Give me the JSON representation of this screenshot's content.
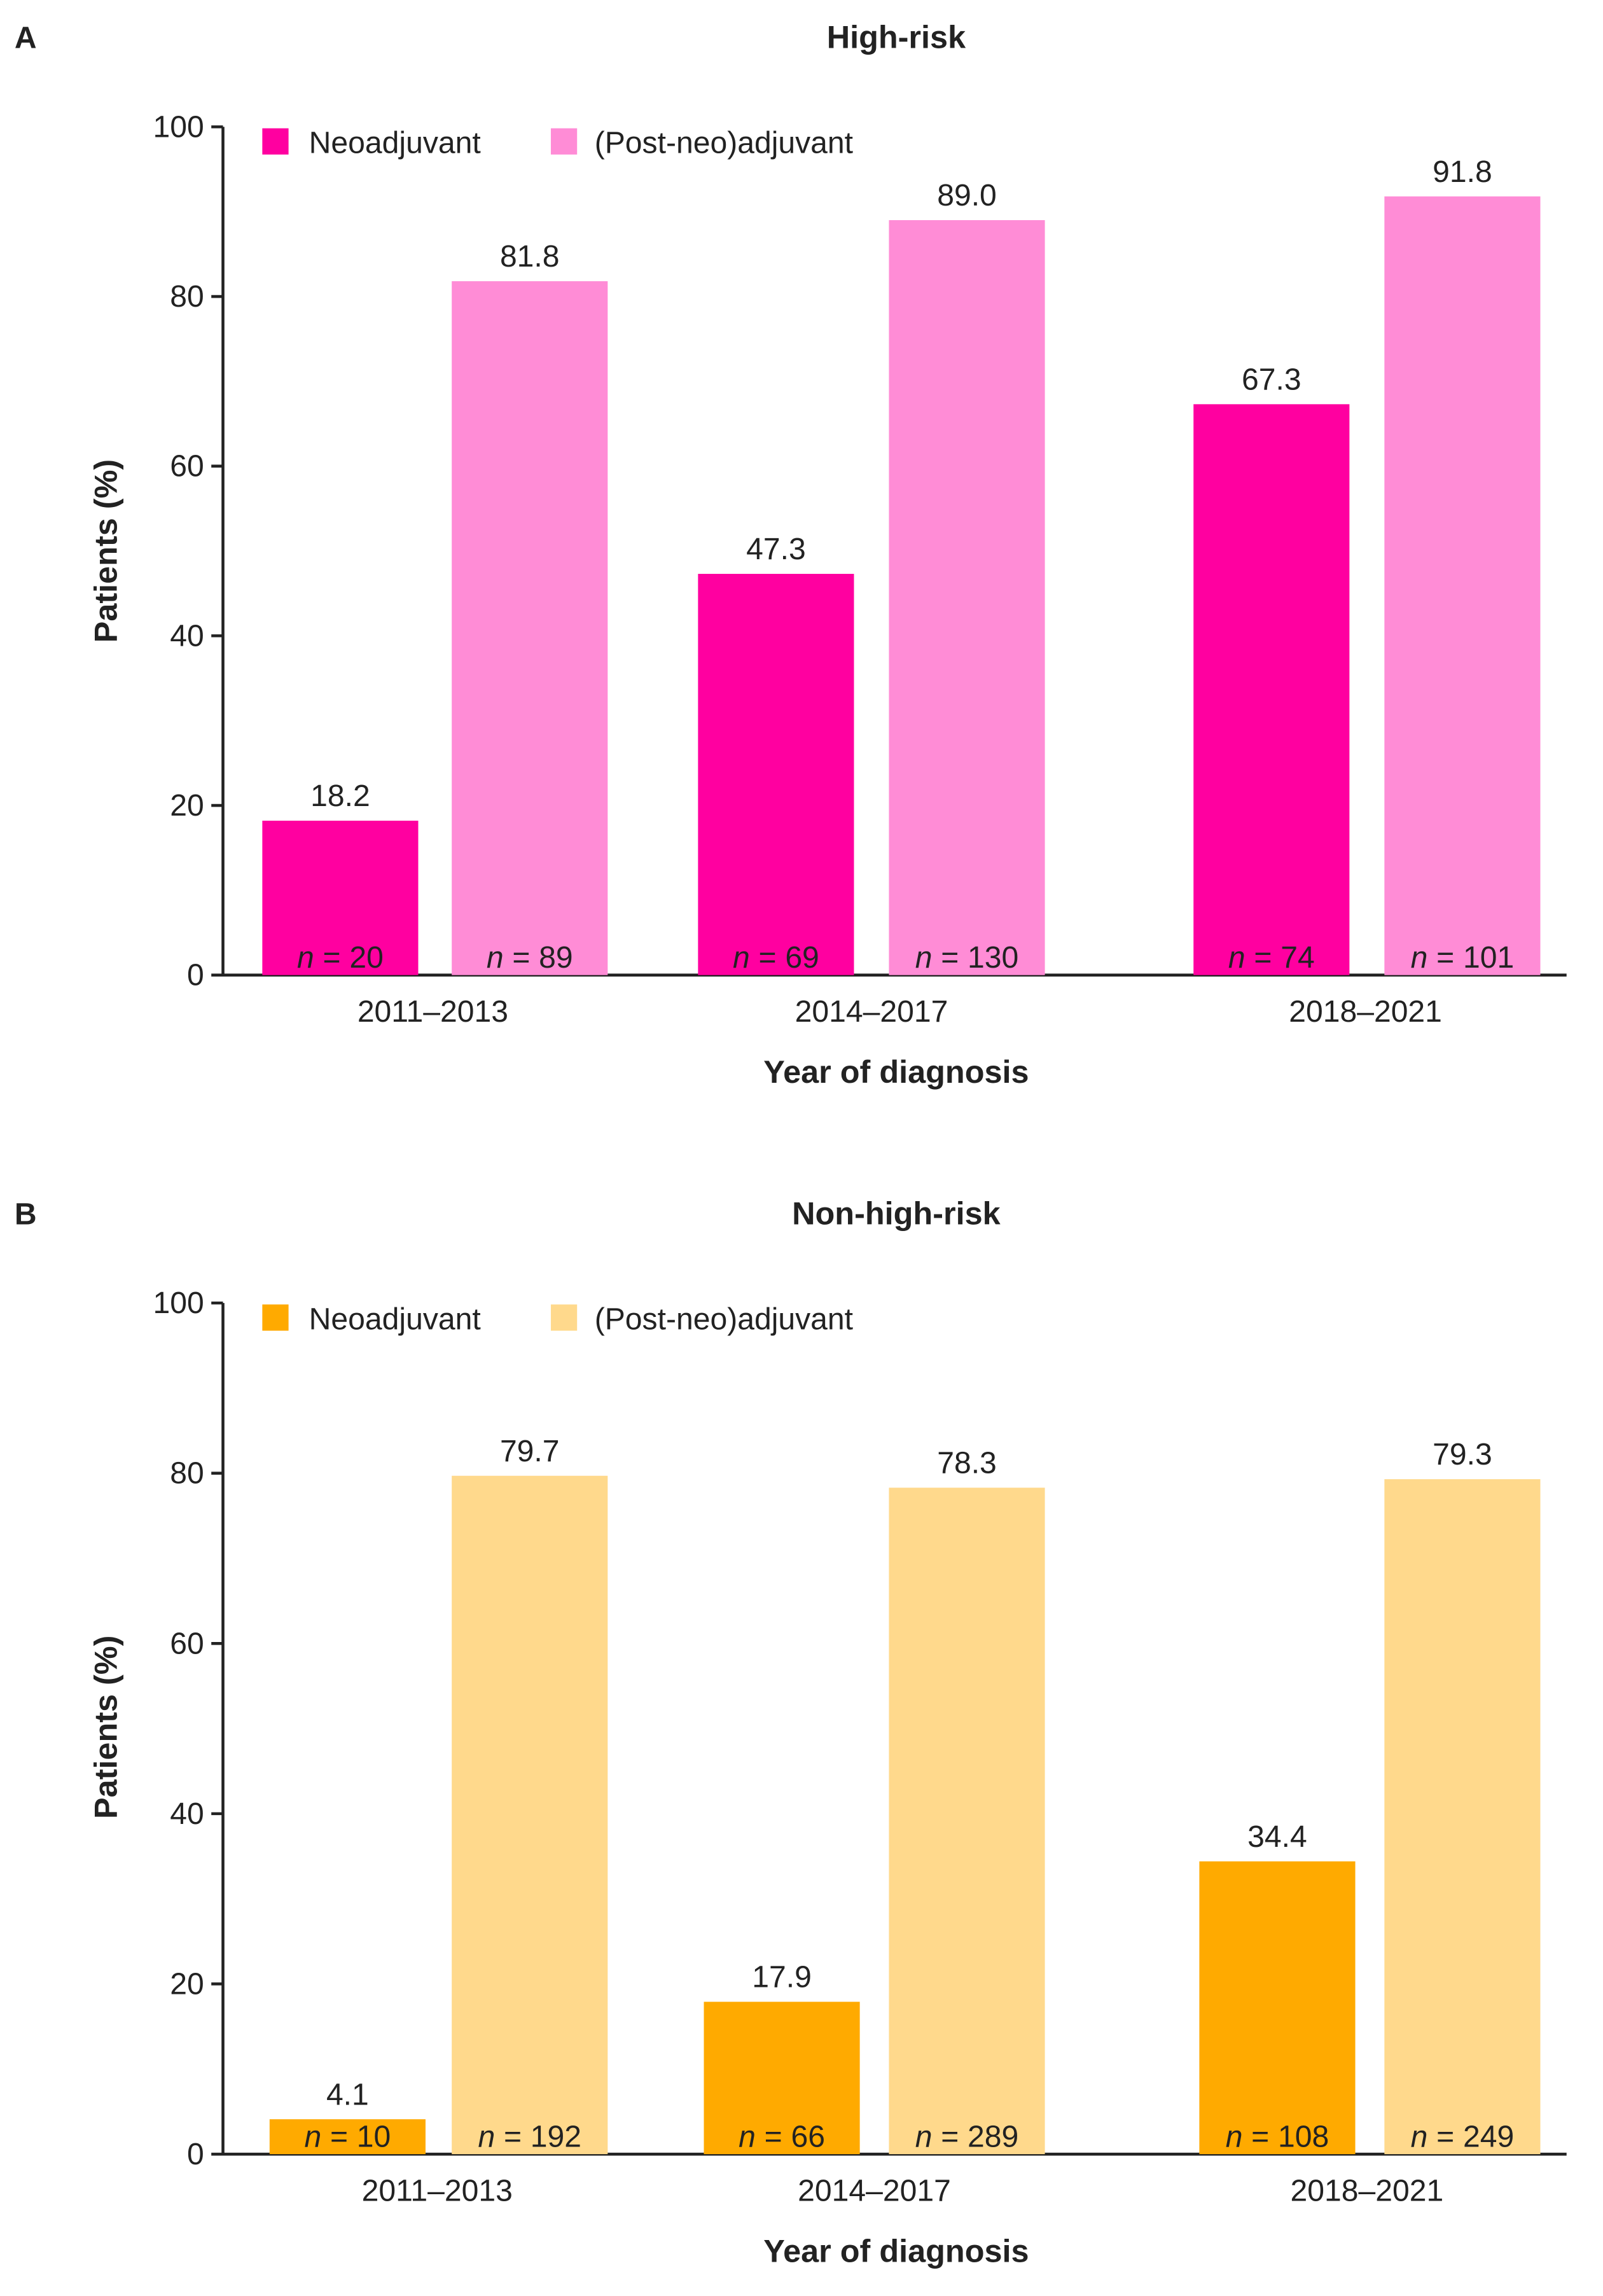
{
  "chart_data": [
    {
      "panel_label": "A",
      "type": "bar",
      "title": "High-risk",
      "xlabel": "Year of diagnosis",
      "ylabel": "Patients (%)",
      "ylim": [
        0,
        100
      ],
      "yticks": [
        "0",
        "20",
        "40",
        "60",
        "80",
        "100"
      ],
      "grid": false,
      "legend_position": "top-left",
      "categories": [
        "2011–2013",
        "2014–2017",
        "2018–2021"
      ],
      "n_symbol": "n",
      "n_equals": "=",
      "series": [
        {
          "name": "Neoadjuvant",
          "color": "#ff00a0",
          "values": [
            18.2,
            47.3,
            67.3
          ],
          "value_labels": [
            "18.2",
            "47.3",
            "67.3"
          ],
          "n": [
            20,
            69,
            74
          ]
        },
        {
          "name": "(Post-neo)adjuvant",
          "color": "#ff8cd6",
          "values": [
            81.8,
            89.0,
            91.8
          ],
          "value_labels": [
            "81.8",
            "89.0",
            "91.8"
          ],
          "n": [
            89,
            130,
            101
          ]
        }
      ]
    },
    {
      "panel_label": "B",
      "type": "bar",
      "title": "Non-high-risk",
      "xlabel": "Year of diagnosis",
      "ylabel": "Patients (%)",
      "ylim": [
        0,
        100
      ],
      "yticks": [
        "0",
        "20",
        "40",
        "60",
        "80",
        "100"
      ],
      "grid": false,
      "legend_position": "top-left",
      "categories": [
        "2011–2013",
        "2014–2017",
        "2018–2021"
      ],
      "n_symbol": "n",
      "n_equals": "=",
      "series": [
        {
          "name": "Neoadjuvant",
          "color": "#ffaa00",
          "values": [
            4.1,
            17.9,
            34.4
          ],
          "value_labels": [
            "4.1",
            "17.9",
            "34.4"
          ],
          "n": [
            10,
            66,
            108
          ]
        },
        {
          "name": "(Post-neo)adjuvant",
          "color": "#ffd98c",
          "values": [
            79.7,
            78.3,
            79.3
          ],
          "value_labels": [
            "79.7",
            "78.3",
            "79.3"
          ],
          "n": [
            192,
            289,
            249
          ]
        }
      ]
    }
  ]
}
